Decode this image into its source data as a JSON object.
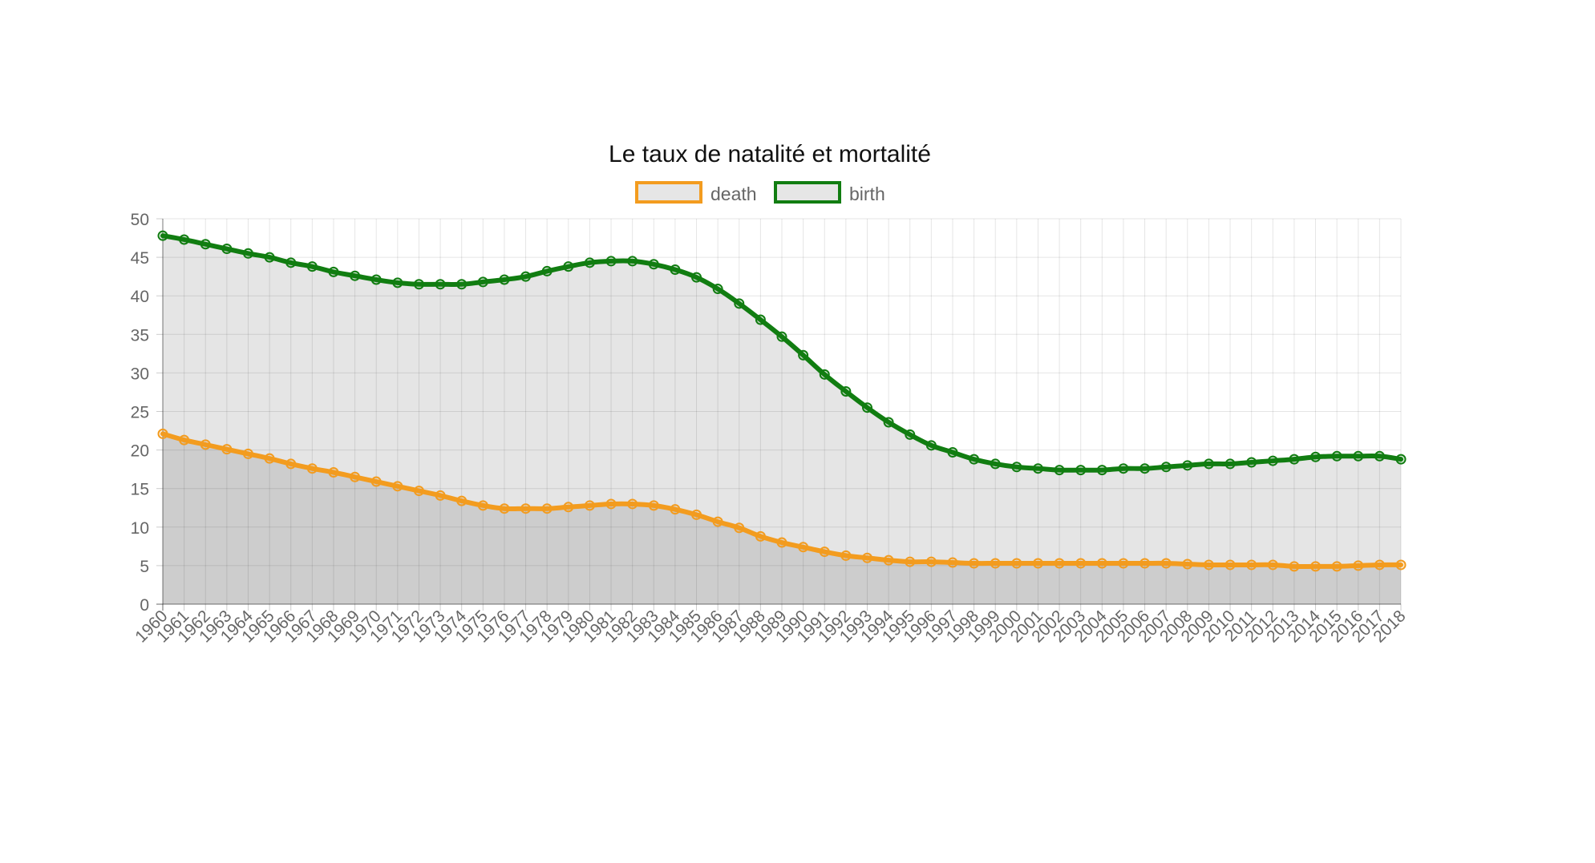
{
  "chart_data": {
    "type": "line",
    "title": "Le taux de natalité et mortalité",
    "xlabel": "",
    "ylabel": "",
    "ylim": [
      0,
      50
    ],
    "yticks": [
      0,
      5,
      10,
      15,
      20,
      25,
      30,
      35,
      40,
      45,
      50
    ],
    "grid": true,
    "legend_position": "top",
    "area_fill": true,
    "categories": [
      "1960",
      "1961",
      "1962",
      "1963",
      "1964",
      "1965",
      "1966",
      "1967",
      "1968",
      "1969",
      "1970",
      "1971",
      "1972",
      "1973",
      "1974",
      "1975",
      "1976",
      "1977",
      "1978",
      "1979",
      "1980",
      "1981",
      "1982",
      "1983",
      "1984",
      "1985",
      "1986",
      "1987",
      "1988",
      "1989",
      "1990",
      "1991",
      "1992",
      "1993",
      "1994",
      "1995",
      "1996",
      "1997",
      "1998",
      "1999",
      "2000",
      "2001",
      "2002",
      "2003",
      "2004",
      "2005",
      "2006",
      "2007",
      "2008",
      "2009",
      "2010",
      "2011",
      "2012",
      "2013",
      "2014",
      "2015",
      "2016",
      "2017",
      "2018"
    ],
    "series": [
      {
        "name": "death",
        "color": "#f39c1f",
        "values": [
          22.1,
          21.3,
          20.7,
          20.1,
          19.5,
          18.9,
          18.2,
          17.6,
          17.1,
          16.5,
          15.9,
          15.3,
          14.7,
          14.1,
          13.4,
          12.8,
          12.4,
          12.4,
          12.4,
          12.6,
          12.8,
          13.0,
          13.0,
          12.8,
          12.3,
          11.6,
          10.7,
          9.9,
          8.8,
          8.0,
          7.4,
          6.8,
          6.3,
          6.0,
          5.7,
          5.5,
          5.5,
          5.4,
          5.3,
          5.3,
          5.3,
          5.3,
          5.3,
          5.3,
          5.3,
          5.3,
          5.3,
          5.3,
          5.2,
          5.1,
          5.1,
          5.1,
          5.1,
          4.9,
          4.9,
          4.9,
          5.0,
          5.1,
          5.1
        ]
      },
      {
        "name": "birth",
        "color": "#117d11",
        "values": [
          47.8,
          47.3,
          46.7,
          46.1,
          45.5,
          45.0,
          44.3,
          43.8,
          43.1,
          42.6,
          42.1,
          41.7,
          41.5,
          41.5,
          41.5,
          41.8,
          42.1,
          42.5,
          43.2,
          43.8,
          44.3,
          44.5,
          44.5,
          44.1,
          43.4,
          42.4,
          40.9,
          39.0,
          36.9,
          34.7,
          32.3,
          29.8,
          27.6,
          25.5,
          23.6,
          22.0,
          20.6,
          19.7,
          18.8,
          18.2,
          17.8,
          17.6,
          17.4,
          17.4,
          17.4,
          17.6,
          17.6,
          17.8,
          18.0,
          18.2,
          18.2,
          18.4,
          18.6,
          18.8,
          19.1,
          19.2,
          19.2,
          19.2,
          18.8
        ]
      }
    ]
  }
}
